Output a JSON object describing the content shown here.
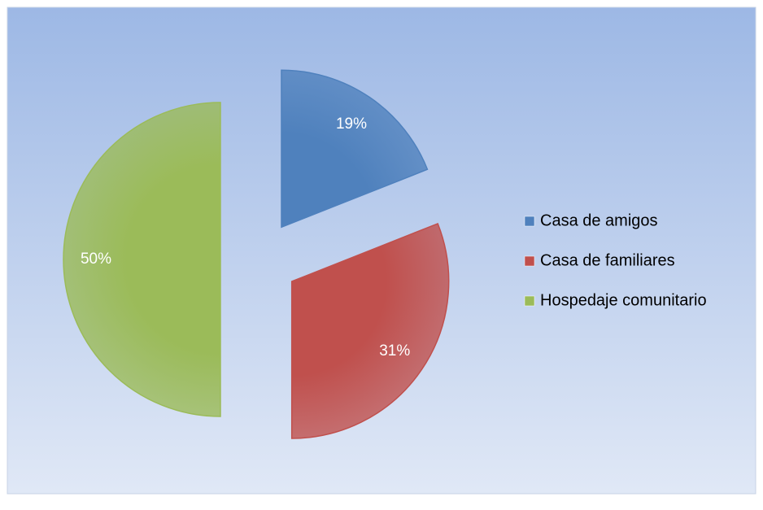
{
  "chart_data": {
    "type": "pie",
    "categories": [
      "Casa de amigos",
      "Casa de familiares",
      "Hospedaje comunitario"
    ],
    "values": [
      19,
      31,
      50
    ],
    "value_labels": [
      "19%",
      "31%",
      "50%"
    ],
    "colors": [
      "#4f81bd",
      "#c0504d",
      "#9bbb59"
    ],
    "exploded": true,
    "legend": "right"
  }
}
